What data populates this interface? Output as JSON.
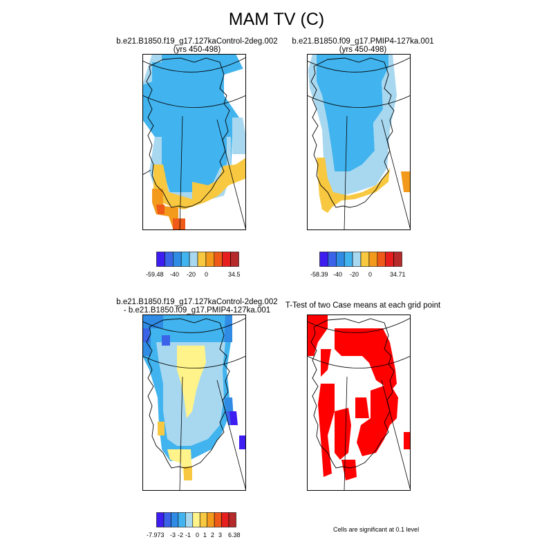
{
  "title": "MAM TV (C)",
  "panels": [
    {
      "id": "p1",
      "line1": "b.e21.B1850.f19_g17.127kaControl-2deg.002",
      "line2": "(yrs 450-498)"
    },
    {
      "id": "p2",
      "line1": "b.e21.B1850.f09_g17.PMIP4-127ka.001",
      "line2": "(yrs 450-498)"
    },
    {
      "id": "p3",
      "line1": "b.e21.B1850.f19_g17.127kaControl-2deg.002",
      "line2": "- b.e21.B1850.f09_g17.PMIP4-127ka.001"
    },
    {
      "id": "p4",
      "line1": "T-Test of two Case means at each grid point",
      "line2": ""
    }
  ],
  "colorbars": [
    {
      "id": "cb1",
      "colors": [
        "#3d1df0",
        "#3a63e8",
        "#2f8be4",
        "#41b3ee",
        "#a8d8f0",
        "#f7c840",
        "#f39a1c",
        "#ef5a18",
        "#e61e1e",
        "#b52a2a"
      ],
      "labels": [
        "-59.48",
        "-40",
        "-20",
        "0",
        "34.5"
      ]
    },
    {
      "id": "cb2",
      "colors": [
        "#3d1df0",
        "#3a63e8",
        "#2f8be4",
        "#41b3ee",
        "#a8d8f0",
        "#f7c840",
        "#f39a1c",
        "#ef5a18",
        "#e61e1e",
        "#b52a2a"
      ],
      "labels": [
        "-58.39",
        "-40",
        "-20",
        "0",
        "34.71"
      ]
    },
    {
      "id": "cb3",
      "colors": [
        "#3d1df0",
        "#3a63e8",
        "#2f8be4",
        "#41b3ee",
        "#a8d8f0",
        "#fff38a",
        "#f7c840",
        "#f39a1c",
        "#ef5a18",
        "#e61e1e",
        "#b52a2a"
      ],
      "labels": [
        "-7.973",
        "-3",
        "-2",
        "-1",
        "0",
        "1",
        "2",
        "3",
        "6.38"
      ]
    }
  ],
  "note": "Cells are significant at 0.1 level",
  "colors": {
    "sig": "#ff0000",
    "bg": "#ffffff"
  }
}
